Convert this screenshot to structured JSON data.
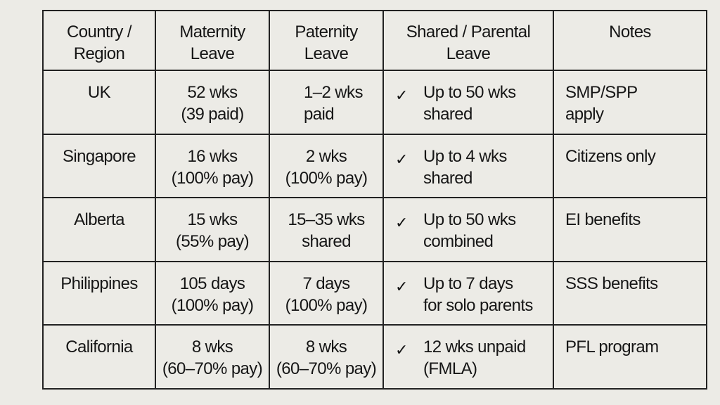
{
  "headers": [
    [
      "Country /",
      "Region"
    ],
    [
      "Maternity",
      "Leave"
    ],
    [
      "Paternity",
      "Leave"
    ],
    [
      "Shared / Parental",
      "Leave"
    ],
    [
      "Notes"
    ]
  ],
  "rows": [
    {
      "country": "UK",
      "maternity": [
        "52 wks",
        "(39 paid)"
      ],
      "paternity": [
        "1–2 wks",
        "paid"
      ],
      "shared": [
        "Up to 50 wks",
        "shared"
      ],
      "notes": [
        "SMP/SPP",
        "apply"
      ],
      "check": "✓"
    },
    {
      "country": "Singapore",
      "maternity": [
        "16 wks",
        "(100% pay)"
      ],
      "paternity": [
        "2 wks",
        "(100% pay)"
      ],
      "shared": [
        "Up to 4 wks",
        "shared"
      ],
      "notes": [
        "Citizens only"
      ],
      "check": "✓"
    },
    {
      "country": "Alberta",
      "maternity": [
        "15 wks",
        "(55% pay)"
      ],
      "paternity": [
        "15–35 wks",
        "shared"
      ],
      "shared": [
        "Up to 50 wks",
        "combined"
      ],
      "notes": [
        "EI benefits"
      ],
      "check": "✓"
    },
    {
      "country": "Philippines",
      "maternity": [
        "105 days",
        "(100% pay)"
      ],
      "paternity": [
        "7 days",
        "(100% pay)"
      ],
      "shared": [
        "Up to 7 days",
        "for solo parents"
      ],
      "notes": [
        "SSS benefits"
      ],
      "check": "✓"
    },
    {
      "country": "California",
      "maternity": [
        "8 wks",
        "(60–70% pay)"
      ],
      "paternity": [
        "8 wks",
        "(60–70% pay)"
      ],
      "shared": [
        "12 wks unpaid",
        "(FMLA)"
      ],
      "notes": [
        "PFL program"
      ],
      "check": "✓"
    }
  ],
  "colors": {
    "background": "#ecebe6",
    "text": "#161616",
    "border": "#222222"
  }
}
